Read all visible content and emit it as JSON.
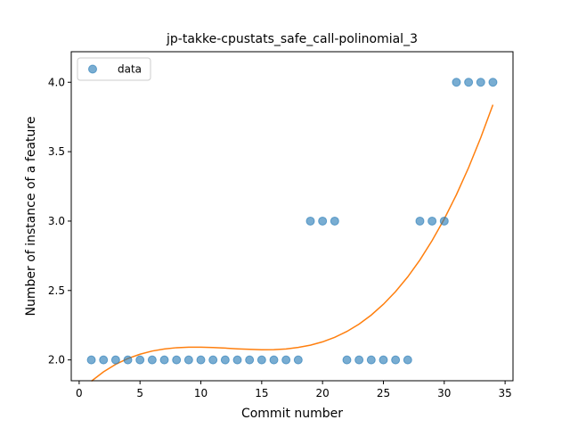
{
  "chart_data": {
    "type": "scatter",
    "title": "jp-takke-cpustats_safe_call-polinomial_3",
    "xlabel": "Commit number",
    "ylabel": "Number of instance of a feature",
    "xlim": [
      -0.65,
      35.65
    ],
    "ylim": [
      1.85,
      4.22
    ],
    "xticks": [
      0,
      5,
      10,
      15,
      20,
      25,
      30,
      35
    ],
    "yticks": [
      2.0,
      2.5,
      3.0,
      3.5,
      4.0
    ],
    "xtick_labels": [
      "0",
      "5",
      "10",
      "15",
      "20",
      "25",
      "30",
      "35"
    ],
    "ytick_labels": [
      "2.0",
      "2.5",
      "3.0",
      "3.5",
      "4.0"
    ],
    "grid": false,
    "legend_position": "top-left",
    "series": [
      {
        "name": "data",
        "kind": "scatter",
        "color": "#1f77b4",
        "x": [
          1,
          2,
          3,
          4,
          5,
          6,
          7,
          8,
          9,
          10,
          11,
          12,
          13,
          14,
          15,
          16,
          17,
          18,
          19,
          20,
          21,
          22,
          23,
          24,
          25,
          26,
          27,
          28,
          29,
          30,
          31,
          32,
          33,
          34
        ],
        "y": [
          2,
          2,
          2,
          2,
          2,
          2,
          2,
          2,
          2,
          2,
          2,
          2,
          2,
          2,
          2,
          2,
          2,
          2,
          3,
          3,
          3,
          2,
          2,
          2,
          2,
          2,
          2,
          3,
          3,
          3,
          4,
          4,
          4,
          4
        ]
      },
      {
        "kind": "line",
        "color": "#ff7f0e",
        "x": [
          1,
          2,
          3,
          4,
          5,
          6,
          7,
          8,
          9,
          10,
          11,
          12,
          13,
          14,
          15,
          16,
          17,
          18,
          19,
          20,
          21,
          22,
          23,
          24,
          25,
          26,
          27,
          28,
          29,
          30,
          31,
          32,
          33,
          34
        ],
        "y": [
          1.847,
          1.914,
          1.968,
          2.01,
          2.041,
          2.064,
          2.079,
          2.088,
          2.092,
          2.092,
          2.089,
          2.085,
          2.08,
          2.076,
          2.073,
          2.074,
          2.079,
          2.09,
          2.106,
          2.13,
          2.163,
          2.205,
          2.258,
          2.323,
          2.401,
          2.492,
          2.598,
          2.72,
          2.859,
          3.015,
          3.19,
          3.385,
          3.601,
          3.838
        ]
      }
    ]
  }
}
